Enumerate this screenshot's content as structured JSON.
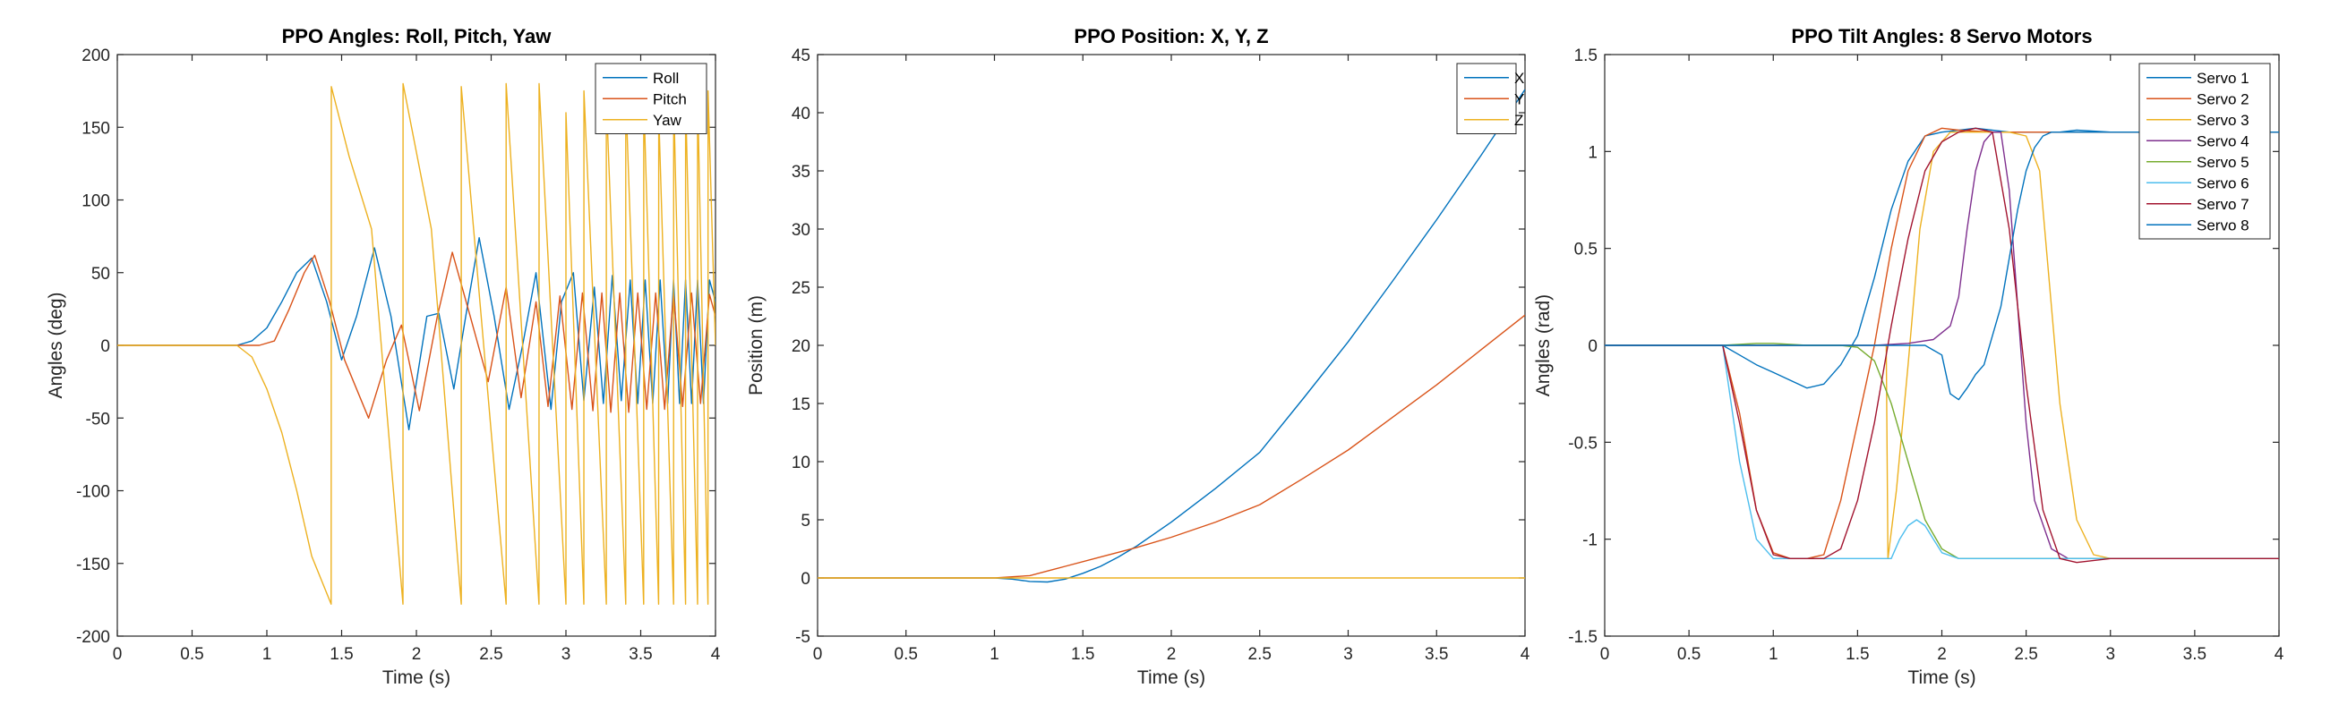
{
  "colors": {
    "c1": "#0072bd",
    "c2": "#d95319",
    "c3": "#edb120",
    "c4": "#7e2f8e",
    "c5": "#77ac30",
    "c6": "#4dbeee",
    "c7": "#a2142f",
    "c8": "#0072bd"
  },
  "chart_data": [
    {
      "type": "line",
      "title": "PPO Angles: Roll, Pitch, Yaw",
      "xlabel": "Time (s)",
      "ylabel": "Angles (deg)",
      "xlim": [
        0,
        4
      ],
      "ylim": [
        -200,
        200
      ],
      "xticks": [
        0,
        0.5,
        1,
        1.5,
        2,
        2.5,
        3,
        3.5,
        4
      ],
      "yticks": [
        -200,
        -150,
        -100,
        -50,
        0,
        50,
        100,
        150,
        200
      ],
      "xtick_labels": [
        "0",
        "0.5",
        "1",
        "1.5",
        "2",
        "2.5",
        "3",
        "3.5",
        "4"
      ],
      "ytick_labels": [
        "-200",
        "-150",
        "-100",
        "-50",
        "0",
        "50",
        "100",
        "150",
        "200"
      ],
      "grid": false,
      "legend": "top-right",
      "series": [
        {
          "name": "Roll",
          "color": "c1",
          "x": [
            0,
            0.8,
            0.9,
            1.0,
            1.1,
            1.2,
            1.3,
            1.4,
            1.5,
            1.6,
            1.72,
            1.83,
            1.95,
            2.07,
            2.15,
            2.25,
            2.33,
            2.42,
            2.52,
            2.62,
            2.71,
            2.8,
            2.9,
            2.97,
            3.05,
            3.12,
            3.19,
            3.25,
            3.31,
            3.37,
            3.43,
            3.48,
            3.53,
            3.58,
            3.63,
            3.68,
            3.72,
            3.76,
            3.8,
            3.84,
            3.88,
            3.92,
            3.96,
            4.0
          ],
          "y": [
            0,
            0,
            3,
            12,
            30,
            50,
            60,
            30,
            -10,
            20,
            67,
            20,
            -58,
            20,
            22,
            -30,
            20,
            74,
            20,
            -44,
            0,
            50,
            -44,
            30,
            50,
            -38,
            40,
            -40,
            48,
            -38,
            45,
            -40,
            45,
            -40,
            45,
            -40,
            45,
            -40,
            45,
            -40,
            45,
            -40,
            45,
            30
          ]
        },
        {
          "name": "Pitch",
          "color": "c2",
          "x": [
            0,
            0.95,
            1.05,
            1.15,
            1.25,
            1.32,
            1.42,
            1.52,
            1.68,
            1.8,
            1.9,
            2.02,
            2.14,
            2.24,
            2.36,
            2.48,
            2.6,
            2.7,
            2.8,
            2.88,
            2.96,
            3.04,
            3.11,
            3.18,
            3.24,
            3.3,
            3.36,
            3.42,
            3.48,
            3.54,
            3.6,
            3.66,
            3.72,
            3.78,
            3.84,
            3.9,
            3.96,
            4.0
          ],
          "y": [
            0,
            0,
            3,
            25,
            50,
            62,
            30,
            -10,
            -50,
            -10,
            14,
            -45,
            20,
            64,
            20,
            -25,
            40,
            -36,
            30,
            -42,
            34,
            -44,
            36,
            -45,
            36,
            -46,
            36,
            -46,
            36,
            -44,
            36,
            -44,
            36,
            -42,
            36,
            -40,
            35,
            20
          ]
        },
        {
          "name": "Yaw",
          "color": "c3",
          "x": [
            0,
            0.8,
            0.9,
            1.0,
            1.1,
            1.2,
            1.3,
            1.43,
            1.431,
            1.55,
            1.7,
            1.91,
            1.911,
            2.1,
            2.3,
            2.3001,
            2.6,
            2.6001,
            2.82,
            2.8201,
            3.0,
            3.0001,
            3.12,
            3.1201,
            3.27,
            3.2701,
            3.4,
            3.4001,
            3.52,
            3.5201,
            3.62,
            3.6201,
            3.72,
            3.7201,
            3.8,
            3.8001,
            3.88,
            3.8801,
            3.95,
            3.9501,
            4.0
          ],
          "y": [
            0,
            0,
            -8,
            -30,
            -60,
            -100,
            -145,
            -178,
            178,
            130,
            80,
            -178,
            180,
            80,
            -178,
            178,
            -178,
            180,
            -178,
            180,
            -178,
            160,
            -178,
            175,
            -178,
            170,
            -178,
            172,
            -178,
            170,
            -178,
            160,
            -178,
            170,
            -178,
            170,
            -178,
            175,
            -178,
            175,
            0
          ]
        }
      ]
    },
    {
      "type": "line",
      "title": "PPO Position: X, Y, Z",
      "xlabel": "Time (s)",
      "ylabel": "Position (m)",
      "xlim": [
        0,
        4
      ],
      "ylim": [
        -5,
        45
      ],
      "xticks": [
        0,
        0.5,
        1,
        1.5,
        2,
        2.5,
        3,
        3.5,
        4
      ],
      "yticks": [
        -5,
        0,
        5,
        10,
        15,
        20,
        25,
        30,
        35,
        40,
        45
      ],
      "xtick_labels": [
        "0",
        "0.5",
        "1",
        "1.5",
        "2",
        "2.5",
        "3",
        "3.5",
        "4"
      ],
      "ytick_labels": [
        "-5",
        "0",
        "5",
        "10",
        "15",
        "20",
        "25",
        "30",
        "35",
        "40",
        "45"
      ],
      "grid": false,
      "legend": "top-right",
      "series": [
        {
          "name": "X",
          "color": "c1",
          "x": [
            0,
            1.0,
            1.1,
            1.2,
            1.3,
            1.4,
            1.5,
            1.6,
            1.7,
            1.8,
            2.0,
            2.25,
            2.5,
            2.75,
            3.0,
            3.25,
            3.5,
            3.75,
            4.0
          ],
          "y": [
            0,
            0,
            -0.1,
            -0.3,
            -0.35,
            -0.1,
            0.4,
            1.0,
            1.8,
            2.7,
            4.8,
            7.7,
            10.8,
            15.5,
            20.3,
            25.5,
            30.8,
            36.3,
            42
          ]
        },
        {
          "name": "Y",
          "color": "c2",
          "x": [
            0,
            1.0,
            1.2,
            1.4,
            1.6,
            1.8,
            2.0,
            2.25,
            2.5,
            2.75,
            3.0,
            3.25,
            3.5,
            3.75,
            4.0
          ],
          "y": [
            0,
            0,
            0.2,
            1.0,
            1.8,
            2.6,
            3.5,
            4.8,
            6.3,
            8.6,
            11.0,
            13.8,
            16.6,
            19.6,
            22.6
          ]
        },
        {
          "name": "Z",
          "color": "c3",
          "x": [
            0,
            4.0
          ],
          "y": [
            0,
            0
          ]
        }
      ]
    },
    {
      "type": "line",
      "title": "PPO Tilt Angles: 8 Servo Motors",
      "xlabel": "Time (s)",
      "ylabel": "Angles (rad)",
      "xlim": [
        0,
        4
      ],
      "ylim": [
        -1.5,
        1.5
      ],
      "xticks": [
        0,
        0.5,
        1,
        1.5,
        2,
        2.5,
        3,
        3.5,
        4
      ],
      "yticks": [
        -1.5,
        -1,
        -0.5,
        0,
        0.5,
        1,
        1.5
      ],
      "xtick_labels": [
        "0",
        "0.5",
        "1",
        "1.5",
        "2",
        "2.5",
        "3",
        "3.5",
        "4"
      ],
      "ytick_labels": [
        "-1.5",
        "-1",
        "-0.5",
        "0",
        "0.5",
        "1",
        "1.5"
      ],
      "grid": false,
      "legend": "top-right",
      "series": [
        {
          "name": "Servo 1",
          "color": "c1",
          "x": [
            0,
            0.7,
            0.8,
            0.9,
            1.0,
            1.1,
            1.2,
            1.3,
            1.4,
            1.5,
            1.6,
            1.7,
            1.8,
            1.9,
            2.0,
            2.2,
            2.4,
            2.5,
            2.6,
            2.65,
            2.7,
            2.8,
            3.0,
            4.0
          ],
          "y": [
            0,
            0,
            -0.05,
            -0.1,
            -0.14,
            -0.18,
            -0.22,
            -0.2,
            -0.1,
            0.05,
            0.35,
            0.7,
            0.95,
            1.08,
            1.1,
            1.12,
            1.1,
            1.1,
            1.1,
            1.1,
            1.1,
            1.11,
            1.1,
            1.1
          ]
        },
        {
          "name": "Servo 2",
          "color": "c2",
          "x": [
            0,
            0.7,
            0.8,
            0.9,
            1.0,
            1.1,
            1.2,
            1.3,
            1.4,
            1.5,
            1.6,
            1.7,
            1.8,
            1.9,
            2.0,
            2.1,
            2.3,
            2.5,
            2.7,
            3.0,
            4.0
          ],
          "y": [
            0,
            0,
            -0.35,
            -0.85,
            -1.07,
            -1.1,
            -1.1,
            -1.08,
            -0.8,
            -0.4,
            0.0,
            0.5,
            0.9,
            1.08,
            1.12,
            1.11,
            1.1,
            1.1,
            1.1,
            1.1,
            1.1
          ]
        },
        {
          "name": "Servo 3",
          "color": "c3",
          "x": [
            0,
            1.67,
            1.68,
            1.73,
            1.8,
            1.87,
            1.95,
            2.05,
            2.3,
            2.4,
            2.5,
            2.58,
            2.63,
            2.7,
            2.8,
            2.9,
            3.0,
            4.0
          ],
          "y": [
            0,
            0,
            -1.1,
            -0.75,
            -0.1,
            0.6,
            1.0,
            1.1,
            1.1,
            1.1,
            1.08,
            0.9,
            0.4,
            -0.3,
            -0.9,
            -1.08,
            -1.1,
            -1.1
          ]
        },
        {
          "name": "Servo 4",
          "color": "c4",
          "x": [
            0,
            1.6,
            1.8,
            1.95,
            2.05,
            2.1,
            2.15,
            2.2,
            2.25,
            2.3,
            2.35,
            2.4,
            2.45,
            2.5,
            2.55,
            2.65,
            2.75,
            2.9,
            3.0,
            4.0
          ],
          "y": [
            0,
            0,
            0.01,
            0.03,
            0.1,
            0.25,
            0.6,
            0.9,
            1.05,
            1.1,
            1.1,
            0.8,
            0.2,
            -0.4,
            -0.8,
            -1.05,
            -1.1,
            -1.1,
            -1.1,
            -1.1
          ]
        },
        {
          "name": "Servo 5",
          "color": "c5",
          "x": [
            0,
            0.7,
            0.9,
            1.0,
            1.2,
            1.4,
            1.5,
            1.6,
            1.7,
            1.8,
            1.9,
            2.0,
            2.1,
            2.2,
            2.3,
            4.0
          ],
          "y": [
            0,
            0,
            0.01,
            0.01,
            0,
            0,
            -0.01,
            -0.08,
            -0.3,
            -0.6,
            -0.9,
            -1.05,
            -1.1,
            -1.1,
            -1.1,
            -1.1
          ]
        },
        {
          "name": "Servo 6",
          "color": "c6",
          "x": [
            0,
            0.7,
            0.8,
            0.9,
            1.0,
            1.1,
            1.5,
            1.7,
            1.75,
            1.8,
            1.85,
            1.9,
            1.95,
            2.0,
            2.1,
            2.3,
            4.0
          ],
          "y": [
            0,
            0,
            -0.6,
            -1.0,
            -1.1,
            -1.1,
            -1.1,
            -1.1,
            -1.0,
            -0.93,
            -0.9,
            -0.93,
            -1.0,
            -1.07,
            -1.1,
            -1.1,
            -1.1
          ]
        },
        {
          "name": "Servo 7",
          "color": "c7",
          "x": [
            0,
            0.7,
            0.8,
            0.9,
            1.0,
            1.1,
            1.3,
            1.4,
            1.5,
            1.6,
            1.7,
            1.8,
            1.9,
            2.0,
            2.1,
            2.2,
            2.3,
            2.4,
            2.5,
            2.6,
            2.7,
            2.8,
            3.0,
            4.0
          ],
          "y": [
            0,
            0,
            -0.4,
            -0.85,
            -1.08,
            -1.1,
            -1.1,
            -1.05,
            -0.8,
            -0.4,
            0.1,
            0.55,
            0.9,
            1.05,
            1.1,
            1.12,
            1.1,
            0.6,
            -0.2,
            -0.85,
            -1.1,
            -1.12,
            -1.1,
            -1.1
          ]
        },
        {
          "name": "Servo 8",
          "color": "c8",
          "x": [
            0,
            1.7,
            1.9,
            2.0,
            2.05,
            2.1,
            2.15,
            2.2,
            2.25,
            2.3,
            2.35,
            2.4,
            2.45,
            2.5,
            2.55,
            2.6,
            2.65,
            2.7,
            2.8,
            4.0
          ],
          "y": [
            0,
            0,
            0,
            -0.05,
            -0.25,
            -0.28,
            -0.22,
            -0.15,
            -0.1,
            0.05,
            0.2,
            0.45,
            0.7,
            0.9,
            1.02,
            1.08,
            1.1,
            1.1,
            1.1,
            1.1
          ]
        }
      ]
    }
  ]
}
